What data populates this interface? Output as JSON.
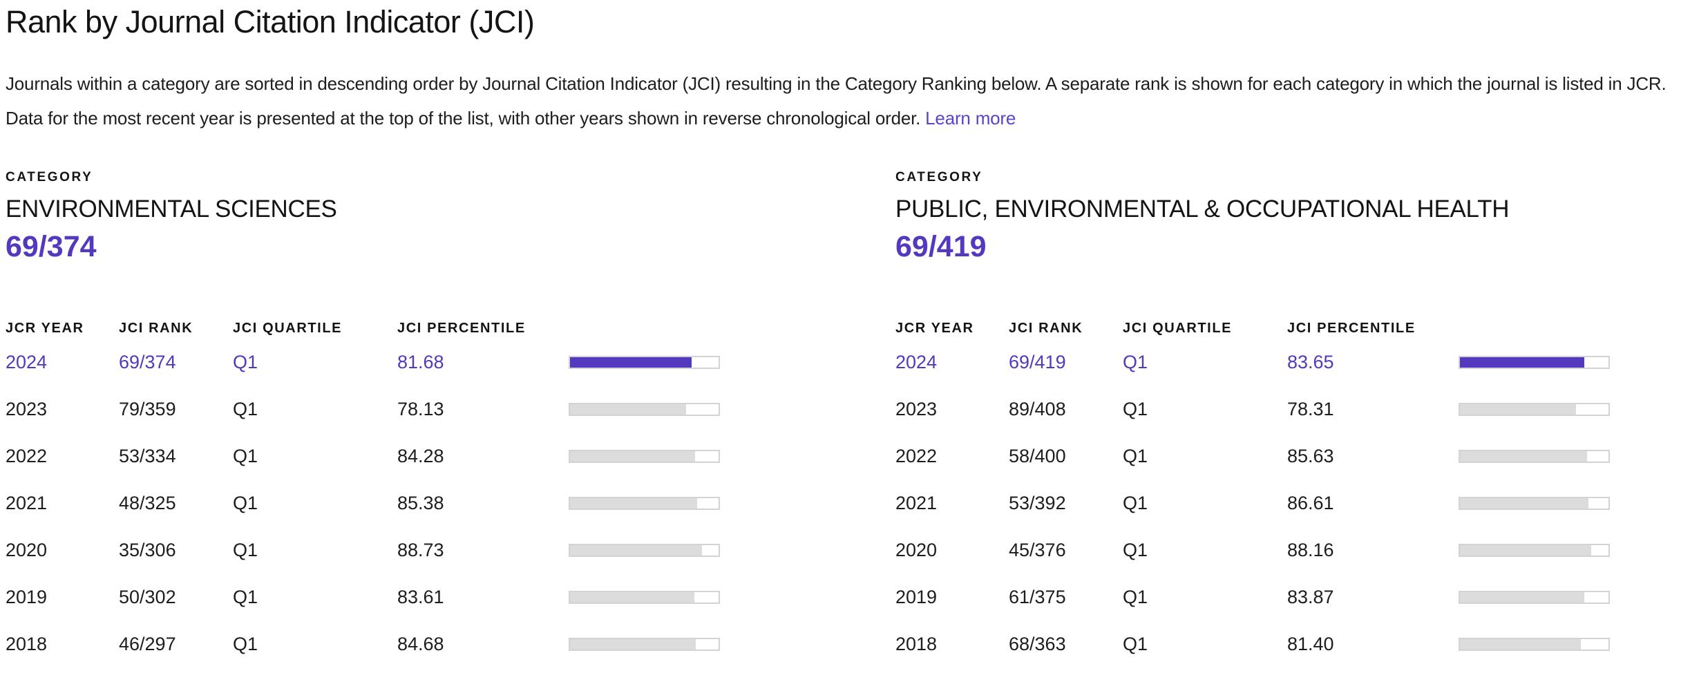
{
  "page": {
    "title": "Rank by Journal Citation Indicator (JCI)",
    "description": "Journals within a category are sorted in descending order by Journal Citation Indicator (JCI) resulting in the Category Ranking below. A separate rank is shown for each category in which the journal is listed in JCR. Data for the most recent year is presented at the top of the list, with other years shown in reverse chronological order.",
    "learn_more_label": "Learn more"
  },
  "colors": {
    "accent_purple": "#5438BE",
    "link_purple": "#5B43C9",
    "bar_inactive_fill": "#DCDCDC",
    "bar_border": "#D3D3D3"
  },
  "table_headers": {
    "year": "JCR YEAR",
    "rank": "JCI RANK",
    "quartile": "JCI QUARTILE",
    "percentile": "JCI PERCENTILE"
  },
  "panels": [
    {
      "category_label": "CATEGORY",
      "category_name": "ENVIRONMENTAL SCIENCES",
      "current_rank": "69/374",
      "rows": [
        {
          "year": "2024",
          "rank": "69/374",
          "quartile": "Q1",
          "percentile": "81.68",
          "highlight": true
        },
        {
          "year": "2023",
          "rank": "79/359",
          "quartile": "Q1",
          "percentile": "78.13",
          "highlight": false
        },
        {
          "year": "2022",
          "rank": "53/334",
          "quartile": "Q1",
          "percentile": "84.28",
          "highlight": false
        },
        {
          "year": "2021",
          "rank": "48/325",
          "quartile": "Q1",
          "percentile": "85.38",
          "highlight": false
        },
        {
          "year": "2020",
          "rank": "35/306",
          "quartile": "Q1",
          "percentile": "88.73",
          "highlight": false
        },
        {
          "year": "2019",
          "rank": "50/302",
          "quartile": "Q1",
          "percentile": "83.61",
          "highlight": false
        },
        {
          "year": "2018",
          "rank": "46/297",
          "quartile": "Q1",
          "percentile": "84.68",
          "highlight": false
        }
      ]
    },
    {
      "category_label": "CATEGORY",
      "category_name": "PUBLIC, ENVIRONMENTAL & OCCUPATIONAL HEALTH",
      "current_rank": "69/419",
      "rows": [
        {
          "year": "2024",
          "rank": "69/419",
          "quartile": "Q1",
          "percentile": "83.65",
          "highlight": true
        },
        {
          "year": "2023",
          "rank": "89/408",
          "quartile": "Q1",
          "percentile": "78.31",
          "highlight": false
        },
        {
          "year": "2022",
          "rank": "58/400",
          "quartile": "Q1",
          "percentile": "85.63",
          "highlight": false
        },
        {
          "year": "2021",
          "rank": "53/392",
          "quartile": "Q1",
          "percentile": "86.61",
          "highlight": false
        },
        {
          "year": "2020",
          "rank": "45/376",
          "quartile": "Q1",
          "percentile": "88.16",
          "highlight": false
        },
        {
          "year": "2019",
          "rank": "61/375",
          "quartile": "Q1",
          "percentile": "83.87",
          "highlight": false
        },
        {
          "year": "2018",
          "rank": "68/363",
          "quartile": "Q1",
          "percentile": "81.40",
          "highlight": false
        }
      ]
    }
  ]
}
